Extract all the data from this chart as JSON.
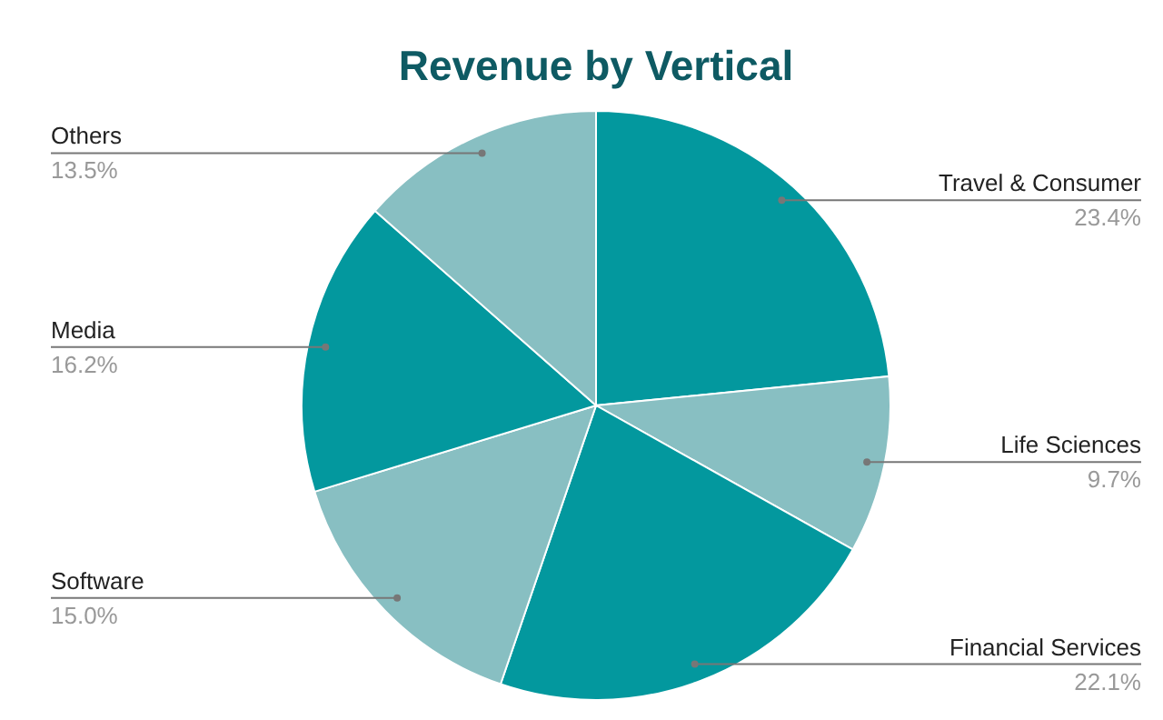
{
  "chart_data": {
    "type": "pie",
    "title": "Revenue by Vertical",
    "categories": [
      "Travel & Consumer",
      "Life Sciences",
      "Financial Services",
      "Software",
      "Media",
      "Others"
    ],
    "values": [
      23.4,
      9.7,
      22.1,
      15.0,
      16.2,
      13.5
    ],
    "value_labels": [
      "23.4%",
      "9.7%",
      "22.1%",
      "15.0%",
      "16.2%",
      "13.5%"
    ],
    "colors": [
      "#03989e",
      "#88bfc2",
      "#03989e",
      "#88bfc2",
      "#03989e",
      "#88bfc2"
    ],
    "legend": false
  }
}
